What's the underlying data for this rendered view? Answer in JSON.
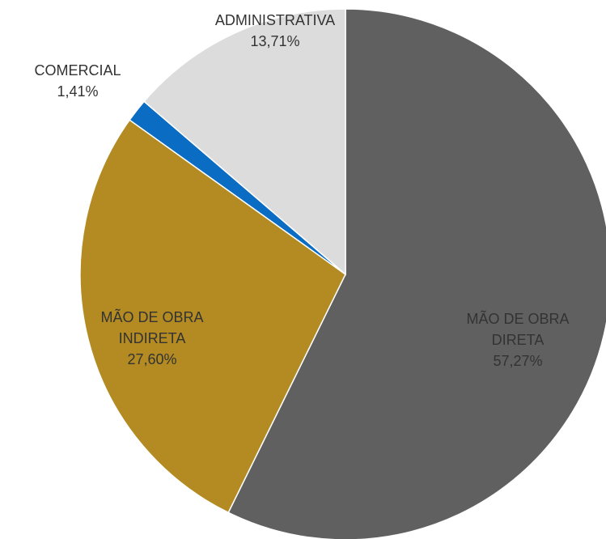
{
  "chart_data": {
    "type": "pie",
    "categories": [
      "MÃO DE OBRA DIRETA",
      "MÃO DE OBRA INDIRETA",
      "COMERCIAL",
      "ADMINISTRATIVA"
    ],
    "values": [
      57.27,
      27.6,
      1.41,
      13.71
    ],
    "value_labels": [
      "57,27%",
      "27,60%",
      "1,41%",
      "13,71%"
    ],
    "colors": [
      "#606060",
      "#b38b22",
      "#0b6cc4",
      "#dcdcdc"
    ]
  }
}
